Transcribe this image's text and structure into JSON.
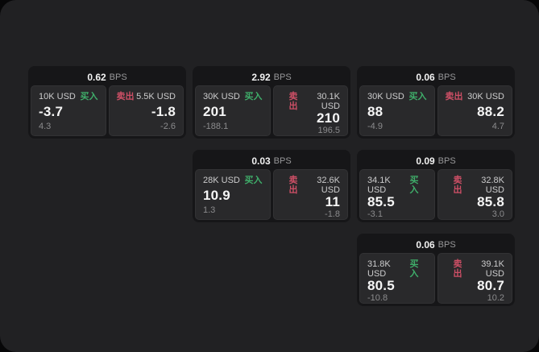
{
  "labels": {
    "buy": "买入",
    "sell": "卖出",
    "bps_unit": "BPS"
  },
  "colors": {
    "buy_green": "#3fae6a",
    "sell_red": "#ce4f66",
    "panel_bg": "#212123",
    "card_bg": "#161618",
    "tile_bg": "#29292b"
  },
  "cards": [
    {
      "bps": "0.62",
      "buy": {
        "amount": "10K USD",
        "price": "-3.7",
        "delta": "4.3"
      },
      "sell": {
        "amount": "5.5K USD",
        "price": "-1.8",
        "delta": "-2.6"
      }
    },
    {
      "bps": "2.92",
      "buy": {
        "amount": "30K USD",
        "price": "201",
        "delta": "-188.1"
      },
      "sell": {
        "amount": "30.1K USD",
        "price": "210",
        "delta": "196.5"
      }
    },
    {
      "bps": "0.06",
      "buy": {
        "amount": "30K USD",
        "price": "88",
        "delta": "-4.9"
      },
      "sell": {
        "amount": "30K USD",
        "price": "88.2",
        "delta": "4.7"
      }
    },
    {
      "bps": "0.03",
      "buy": {
        "amount": "28K USD",
        "price": "10.9",
        "delta": "1.3"
      },
      "sell": {
        "amount": "32.6K USD",
        "price": "11",
        "delta": "-1.8"
      }
    },
    {
      "bps": "0.09",
      "buy": {
        "amount": "34.1K USD",
        "price": "85.5",
        "delta": "-3.1"
      },
      "sell": {
        "amount": "32.8K USD",
        "price": "85.8",
        "delta": "3.0"
      }
    },
    {
      "bps": "0.06",
      "buy": {
        "amount": "31.8K USD",
        "price": "80.5",
        "delta": "-10.8"
      },
      "sell": {
        "amount": "39.1K USD",
        "price": "80.7",
        "delta": "10.2"
      }
    }
  ]
}
